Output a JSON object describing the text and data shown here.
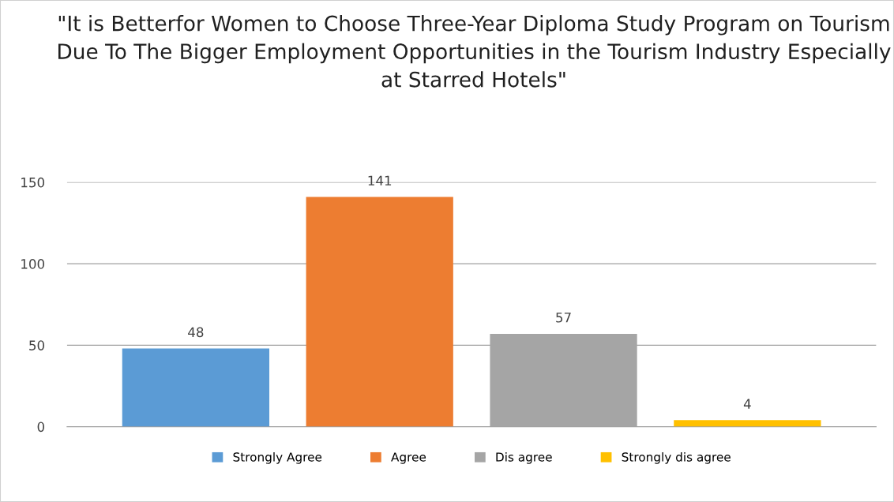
{
  "chart_data": {
    "type": "bar",
    "title": "\"It is Betterfor Women to Choose Three-Year Diploma Study Program on Tourism Due To The Bigger Employment Opportunities in the Tourism Industry Especially at Starred Hotels\"",
    "categories": [
      null
    ],
    "series": [
      {
        "name": "Strongly Agree",
        "color": "#5b9bd5",
        "values": [
          48
        ]
      },
      {
        "name": "Agree",
        "color": "#ed7d31",
        "values": [
          141
        ]
      },
      {
        "name": "Dis agree",
        "color": "#a5a5a5",
        "values": [
          57
        ]
      },
      {
        "name": "Strongly dis agree",
        "color": "#ffc000",
        "values": [
          4
        ]
      }
    ],
    "ylim": [
      0,
      150
    ],
    "yticks": [
      0,
      50,
      100,
      150
    ],
    "grid": "y",
    "legend": "bottom",
    "data_labels": true
  }
}
